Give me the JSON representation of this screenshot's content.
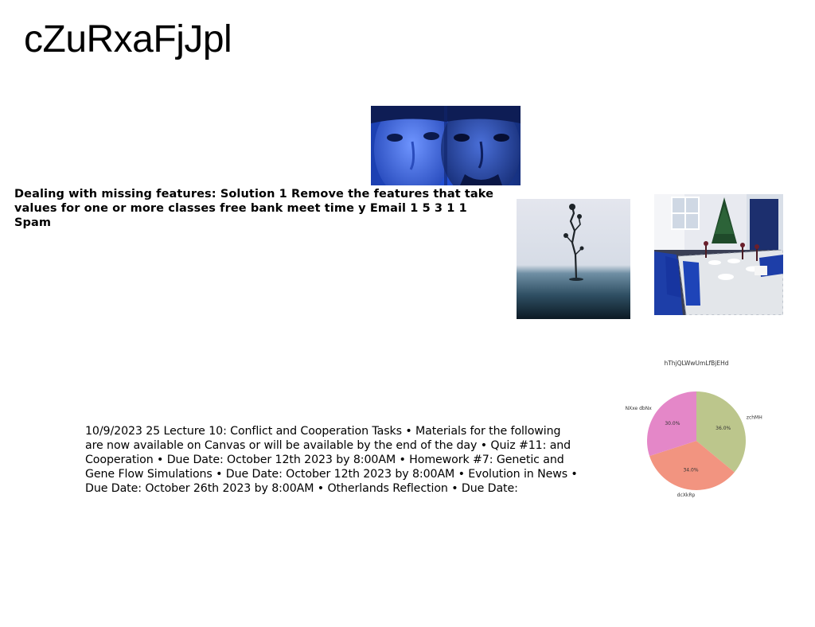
{
  "title": "cZuRxaFjJpl",
  "images": {
    "faces": "two-faces-blue-photo",
    "tree": "lone-tree-fog-photo",
    "table": "dining-table-blue-chairs-photo"
  },
  "text_blocks": {
    "bold": "Dealing with missing features: Solution 1 Remove the features that take values for one or more classes free bank meet time y Email 1 5 3 1 1 Spam",
    "body": "10/9/2023 25 Lecture 10: Conflict and Cooperation Tasks • Materials for the following are now available on Canvas or will be available by the end of the day • Quiz #11: and Cooperation • Due Date: October 12th 2023 by 8:00AM • Homework #7: Genetic and Gene Flow Simulations • Due Date: October 12th 2023 by 8:00AM • Evolution in News • Due Date: October 26th 2023 by 8:00AM • Otherlands Reflection • Due Date:"
  },
  "chart_data": {
    "type": "pie",
    "title": "hThjQLWwUmLfBjEHd",
    "slices": [
      {
        "label": "zchMH",
        "value": 36.0,
        "pct_label": "36.0%",
        "color": "#bcc68c"
      },
      {
        "label": "dcXkRp",
        "value": 34.0,
        "pct_label": "34.0%",
        "color": "#f29480"
      },
      {
        "label": "NXxe dbNx",
        "value": 30.0,
        "pct_label": "30.0%",
        "color": "#e487c8"
      }
    ],
    "start_angle_deg": 90,
    "direction": "clockwise"
  }
}
